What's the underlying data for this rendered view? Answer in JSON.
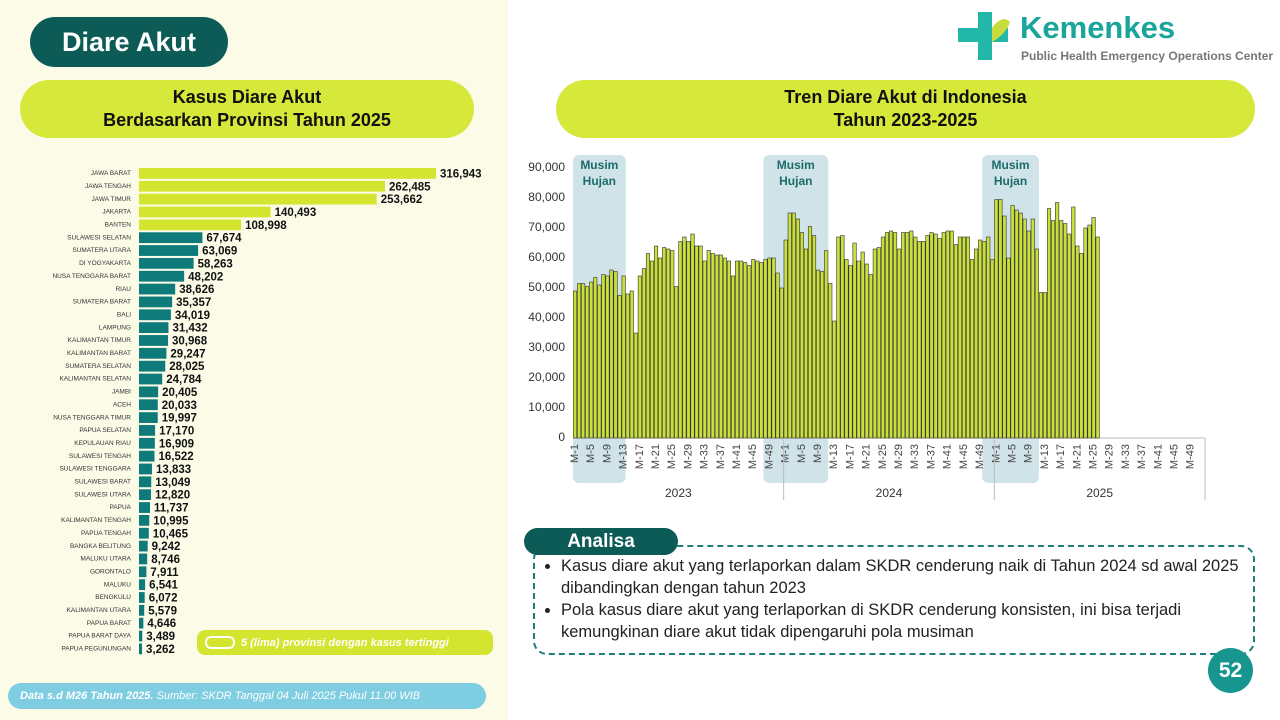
{
  "header": {
    "title": "Diare Akut",
    "logo_name": "Kemenkes",
    "logo_subtitle": "Public Health Emergency Operations Center"
  },
  "chart_data": [
    {
      "type": "hbar",
      "title": [
        "Kasus Diare Akut",
        "Berdasarkan Provinsi Tahun 2025"
      ],
      "categories": [
        "JAWA BARAT",
        "JAWA TENGAH",
        "JAWA TIMUR",
        "JAKARTA",
        "BANTEN",
        "SULAWESI SELATAN",
        "SUMATERA UTARA",
        "DI YOGYAKARTA",
        "NUSA TENGGARA BARAT",
        "RIAU",
        "SUMATERA BARAT",
        "BALI",
        "LAMPUNG",
        "KALIMANTAN TIMUR",
        "KALIMANTAN BARAT",
        "SUMATERA SELATAN",
        "KALIMANTAN SELATAN",
        "JAMBI",
        "ACEH",
        "NUSA TENGGARA TIMUR",
        "PAPUA SELATAN",
        "KEPULAUAN RIAU",
        "SULAWESI TENGAH",
        "SULAWESI TENGGARA",
        "SULAWESI BARAT",
        "SULAWESI UTARA",
        "PAPUA",
        "KALIMANTAN TENGAH",
        "PAPUA TENGAH",
        "BANGKA BELITUNG",
        "MALUKU UTARA",
        "GORONTALO",
        "MALUKU",
        "BENGKULU",
        "KALIMANTAN UTARA",
        "PAPUA BARAT",
        "PAPUA BARAT DAYA",
        "PAPUA PEGUNUNGAN"
      ],
      "values": [
        316943,
        262485,
        253662,
        140493,
        108998,
        67674,
        63069,
        58263,
        48202,
        38626,
        35357,
        34019,
        31432,
        30968,
        29247,
        28025,
        24784,
        20405,
        20033,
        19997,
        17170,
        16909,
        16522,
        13833,
        13049,
        12820,
        11737,
        10995,
        10465,
        9242,
        8746,
        7911,
        6541,
        6072,
        5579,
        4646,
        3489,
        3262
      ],
      "value_labels": [
        "316,943",
        "262,485",
        "253,662",
        "140,493",
        "108,998",
        "67,674",
        "63,069",
        "58,263",
        "48,202",
        "38,626",
        "35,357",
        "34,019",
        "31,432",
        "30,968",
        "29,247",
        "28,025",
        "24,784",
        "20,405",
        "20,033",
        "19,997",
        "17,170",
        "16,909",
        "16,522",
        "13,833",
        "13,049",
        "12,820",
        "11,737",
        "10,995",
        "10,465",
        "9,242",
        "8,746",
        "7,911",
        "6,541",
        "6,072",
        "5,579",
        "4,646",
        "3,489",
        "3,262"
      ],
      "colors": [
        "#d4e52f",
        "#d4e52f",
        "#d4e52f",
        "#d4e52f",
        "#d4e52f",
        "#0f7a7a",
        "#0f7a7a",
        "#0f7a7a",
        "#0f7a7a",
        "#0f7a7a",
        "#0f7a7a",
        "#0f7a7a",
        "#0f7a7a",
        "#0f7a7a",
        "#0f7a7a",
        "#0f7a7a",
        "#0f7a7a",
        "#0f7a7a",
        "#0f7a7a",
        "#0f7a7a",
        "#0f7a7a",
        "#0f7a7a",
        "#0f7a7a",
        "#0f7a7a",
        "#0f7a7a",
        "#0f7a7a",
        "#0f7a7a",
        "#0f7a7a",
        "#0f7a7a",
        "#0f7a7a",
        "#0f7a7a",
        "#0f7a7a",
        "#0f7a7a",
        "#0f7a7a",
        "#0f7a7a",
        "#0f7a7a",
        "#0f7a7a",
        "#0f7a7a"
      ],
      "legend": "5 (lima) provinsi dengan kasus tertinggi"
    },
    {
      "type": "bar",
      "title": [
        "Tren Diare Akut di Indonesia",
        "Tahun 2023-2025"
      ],
      "color": "#c9df3a",
      "categories": [
        "M-1",
        null,
        null,
        null,
        "M-5",
        null,
        null,
        null,
        "M-9",
        null,
        null,
        null,
        "M-13",
        null,
        null,
        null,
        "M-17",
        null,
        null,
        null,
        "M-21",
        null,
        null,
        null,
        "M-25",
        null,
        null,
        null,
        "M-29",
        null,
        null,
        null,
        "M-33",
        null,
        null,
        null,
        "M-37",
        null,
        null,
        null,
        "M-41",
        null,
        null,
        null,
        "M-45",
        null,
        null,
        null,
        "M-49",
        null,
        null,
        null,
        "M-1",
        null,
        null,
        null,
        "M-5",
        null,
        null,
        null,
        "M-9",
        null,
        null,
        null,
        "M-13",
        null,
        null,
        null,
        "M-17",
        null,
        null,
        null,
        "M-21",
        null,
        null,
        null,
        "M-25",
        null,
        null,
        null,
        "M-29",
        null,
        null,
        null,
        "M-33",
        null,
        null,
        null,
        "M-37",
        null,
        null,
        null,
        "M-41",
        null,
        null,
        null,
        "M-45",
        null,
        null,
        null,
        "M-49",
        null,
        null,
        null,
        "M-1",
        null,
        null,
        null,
        "M-5",
        null,
        null,
        null,
        "M-9",
        null,
        null,
        null,
        "M-13",
        null,
        null,
        null,
        "M-17",
        null,
        null,
        null,
        "M-21",
        null,
        null,
        null,
        "M-25",
        null,
        null,
        null,
        "M-29",
        null,
        null,
        null,
        "M-33",
        null,
        null,
        null,
        "M-37",
        null,
        null,
        null,
        "M-41",
        null,
        null,
        null,
        "M-45",
        null,
        null,
        null,
        "M-49",
        null,
        null,
        null
      ],
      "values": [
        49000,
        51500,
        51500,
        50500,
        52000,
        53500,
        51000,
        54500,
        54000,
        56000,
        55500,
        47500,
        54000,
        48000,
        49000,
        35000,
        54000,
        56500,
        61500,
        59000,
        64000,
        60000,
        63500,
        63000,
        62500,
        50500,
        65500,
        67000,
        65500,
        68000,
        64000,
        64000,
        59000,
        62500,
        61500,
        61000,
        61000,
        60000,
        59000,
        54000,
        59000,
        59000,
        58500,
        57500,
        59500,
        59000,
        58500,
        59500,
        60000,
        60000,
        55000,
        50000,
        66000,
        75000,
        75000,
        73000,
        68500,
        63000,
        70500,
        67500,
        56000,
        55500,
        62500,
        51500,
        39000,
        67000,
        67500,
        59500,
        57500,
        65000,
        59000,
        62000,
        58000,
        54500,
        63000,
        63500,
        67000,
        68500,
        69000,
        68500,
        63000,
        68500,
        68500,
        69000,
        67000,
        65500,
        65500,
        67500,
        68500,
        68000,
        66500,
        68500,
        69000,
        69000,
        64500,
        67000,
        67000,
        67000,
        59500,
        63000,
        66000,
        65500,
        67000,
        59500,
        79500,
        79500,
        74000,
        60000,
        77500,
        76000,
        75000,
        73000,
        69000,
        73000,
        63000,
        48500,
        48500,
        76500,
        72500,
        78500,
        72500,
        71500,
        68000,
        77000,
        64000,
        61500,
        70000,
        71000,
        73500,
        67000,
        null,
        null,
        null,
        null,
        null,
        null,
        null,
        null,
        null,
        null,
        null,
        null,
        null,
        null,
        null,
        null,
        null,
        null,
        null,
        null,
        null,
        null,
        null,
        null,
        null,
        null
      ],
      "groups": [
        "2023",
        "2024",
        "2025"
      ],
      "annotations": [
        "Musim Hujan",
        "Musim Hujan",
        "Musim Hujan"
      ],
      "ylim": [
        0,
        90000
      ],
      "yticks": [
        0,
        {
          "value": 10000,
          "label": "10,000"
        },
        {
          "value": 20000,
          "label": "20,000"
        },
        {
          "value": 30000,
          "label": "30,000"
        },
        {
          "value": 40000,
          "label": "40,000"
        },
        {
          "value": 50000,
          "label": "50,000"
        },
        {
          "value": 60000,
          "label": "60,000"
        },
        {
          "value": 70000,
          "label": "70,000"
        },
        {
          "value": 80000,
          "label": "80,000"
        },
        {
          "value": 90000,
          "label": "90,000"
        }
      ]
    }
  ],
  "analysis": {
    "title": "Analisa",
    "bullets": [
      "Kasus diare akut yang terlaporkan dalam SKDR cenderung naik di Tahun 2024 sd awal 2025 dibandingkan dengan tahun 2023",
      "Pola kasus diare akut yang terlaporkan di SKDR cenderung konsisten, ini bisa terjadi kemungkinan diare akut tidak dipengaruhi pola musiman"
    ]
  },
  "footer": {
    "note": "Data s.d M26 Tahun 2025.",
    "source": "Sumber: SKDR Tanggal 04 Juli 2025 Pukul 11.00 WIB",
    "page": "52"
  }
}
